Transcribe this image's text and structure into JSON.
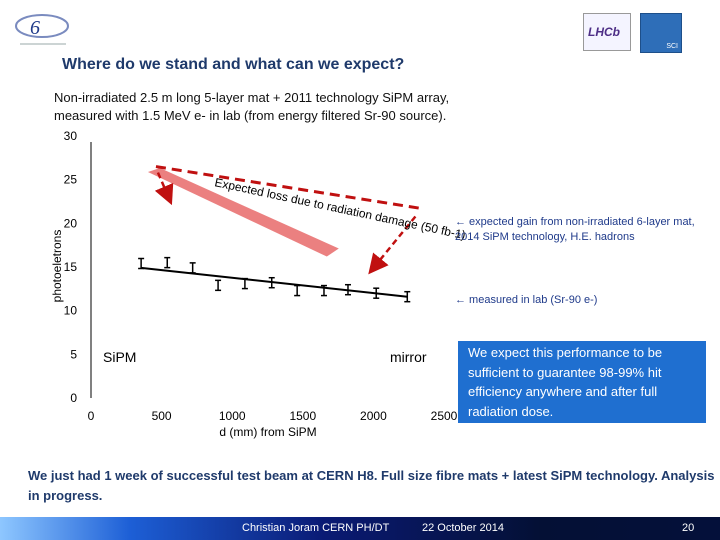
{
  "header": {
    "title": "Where do we stand and what can we expect?",
    "subtitle_line1": "Non-irradiated 2.5 m long 5-layer mat + 2011 technology SiPM array,",
    "subtitle_line2": "measured with 1.5 MeV e- in lab (from energy filtered Sr-90 source)."
  },
  "logos": {
    "lhcb": "LHCb",
    "sci": "SCI"
  },
  "chart_data": {
    "type": "scatter",
    "ylabel": "photoeletrons",
    "xlabel": "d (mm) from SiPM",
    "xlim": [
      0,
      2500
    ],
    "ylim": [
      0,
      30
    ],
    "x_ticks": [
      "0",
      "500",
      "1000",
      "1500",
      "2000",
      "2500"
    ],
    "y_ticks": [
      "0",
      "5",
      "10",
      "15",
      "20",
      "25",
      "30"
    ],
    "annotations": {
      "left_end": "SiPM",
      "right_end": "mirror",
      "loss": "Expected loss due to radiation damage (50 fb-1)"
    },
    "series": [
      {
        "name": "measured in lab (Sr-90 e-)",
        "x": [
          355,
          540,
          720,
          900,
          1090,
          1280,
          1460,
          1650,
          1820,
          2020,
          2240
        ],
        "y": [
          15.4,
          15.5,
          14.9,
          12.9,
          13.1,
          13.2,
          12.3,
          12.3,
          12.4,
          12.0,
          11.6
        ]
      },
      {
        "name": "measured trend",
        "x": [
          355,
          2240
        ],
        "y": [
          14.9,
          11.6
        ]
      },
      {
        "name": "expected gain from non-irradiated 6-layer mat, 2014 SiPM technology, H.E. hadrons",
        "x": [
          460,
          2340
        ],
        "y": [
          26.5,
          21.7
        ]
      },
      {
        "name": "radiation damage band",
        "x": [
          460,
          1670
        ],
        "y": [
          24.5,
          17.8
        ]
      }
    ]
  },
  "notes": {
    "expected_gain": "← expected gain from non-irradiated 6-layer mat, 2014 SiPM technology, H.E. hadrons",
    "measured": "← measured in lab (Sr-90 e-)",
    "callout": "We expect this performance to be sufficient to guarantee 98-99% hit efficiency anywhere and after full radiation dose.",
    "bottom": "We just had 1 week of successful test beam at CERN H8. Full size fibre mats + latest SiPM technology. Analysis in progress."
  },
  "footer": {
    "author": "Christian Joram CERN PH/DT",
    "date": "22 October 2014",
    "page": "20"
  }
}
